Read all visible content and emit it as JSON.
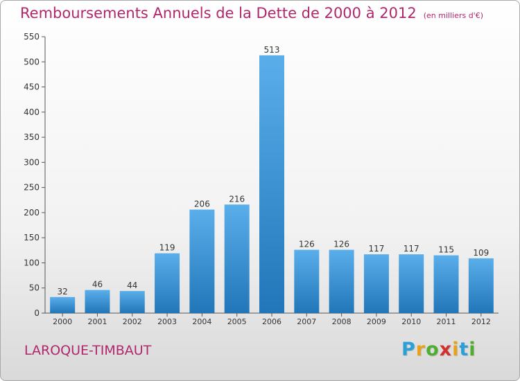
{
  "title": "Remboursements Annuels de la Dette de 2000 à 2012",
  "subtitle": "(en milliers d'€)",
  "commune": "LAROQUE-TIMBAUT",
  "logo": {
    "letters": [
      "P",
      "r",
      "o",
      "x",
      "i",
      "t",
      "i"
    ],
    "colors": [
      "#2a9fd8",
      "#e8a21a",
      "#4fae2e",
      "#d0312d",
      "#e8a21a",
      "#2a9fd8",
      "#4fae2e"
    ]
  },
  "colors": {
    "bar_top": "#5aaeea",
    "bar_bottom": "#2176b9",
    "title": "#b0266b"
  },
  "chart_data": {
    "type": "bar",
    "categories": [
      "2000",
      "2001",
      "2002",
      "2003",
      "2004",
      "2005",
      "2006",
      "2007",
      "2008",
      "2009",
      "2010",
      "2011",
      "2012"
    ],
    "values": [
      32,
      46,
      44,
      119,
      206,
      216,
      513,
      126,
      126,
      117,
      117,
      115,
      109
    ],
    "yticks": [
      0,
      50,
      100,
      150,
      200,
      250,
      300,
      350,
      400,
      450,
      500,
      550
    ],
    "ylim": [
      0,
      550
    ],
    "grid": false,
    "legend": "none"
  }
}
